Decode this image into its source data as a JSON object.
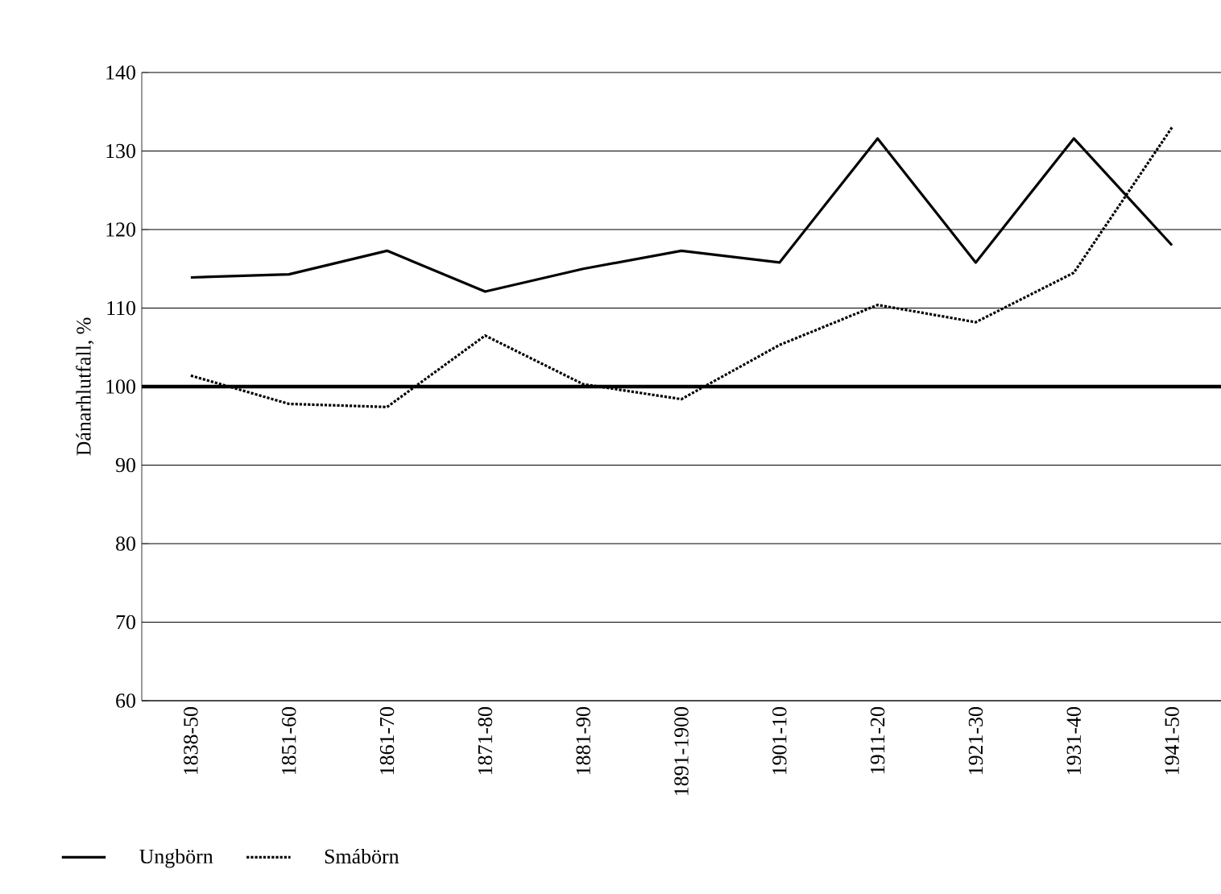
{
  "chart_data": {
    "type": "line",
    "ylabel": "Dánarhlutfall, %",
    "categories": [
      "1838-50",
      "1851-60",
      "1861-70",
      "1871-80",
      "1881-90",
      "1891-1900",
      "1901-10",
      "1911-20",
      "1921-30",
      "1931-40",
      "1941-50"
    ],
    "series": [
      {
        "name": "Ungbörn",
        "color": "#000000",
        "line_style": "solid",
        "values": [
          113.9,
          114.3,
          117.3,
          112.1,
          115,
          117.3,
          115.8,
          131.6,
          115.8,
          131.6,
          118
        ]
      },
      {
        "name": "Smábörn",
        "color": "#000000",
        "line_style": "dotted",
        "values": [
          101.4,
          97.8,
          97.4,
          106.5,
          100.3,
          98.4,
          105.3,
          110.4,
          108.2,
          114.5,
          133
        ]
      }
    ],
    "ylim": [
      60,
      140
    ],
    "yticks": [
      60,
      70,
      80,
      90,
      100,
      110,
      120,
      130,
      140
    ],
    "grid": "y",
    "legend": "bottom",
    "marker": "none",
    "ref_lines": [
      {
        "axis": "y",
        "value": 100,
        "color": "#000000"
      }
    ]
  }
}
